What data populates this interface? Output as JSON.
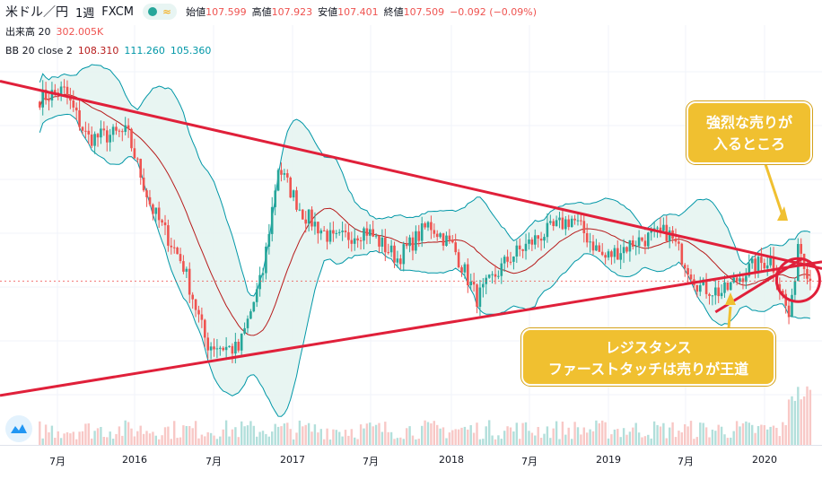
{
  "header": {
    "symbol": "米ドル／円",
    "timeframe": "1週",
    "source": "FXCM",
    "wave_glyph": "≈",
    "ohlc": [
      {
        "label": "始値",
        "value": "107.599"
      },
      {
        "label": "高値",
        "value": "107.923"
      },
      {
        "label": "安値",
        "value": "107.401"
      },
      {
        "label": "終値",
        "value": "107.509"
      }
    ],
    "change": "−0.092 (−0.09%)"
  },
  "volume_indicator": {
    "label": "出来高 20",
    "value": "302.005K"
  },
  "bb_indicator": {
    "label": "BB 20 close 2",
    "basis": "108.310",
    "upper": "111.260",
    "lower": "105.360"
  },
  "callouts": {
    "top_line1": "強烈な売りが",
    "top_line2": "入るところ",
    "bottom_line1": "レジスタンス",
    "bottom_line2": "ファーストタッチは売りが王道"
  },
  "colors": {
    "up": "#26a69a",
    "down": "#ef5350",
    "trendline": "#e0203a",
    "band": "#0097a7",
    "band_fill": "#e6f4f1",
    "basis": "#b71c1c",
    "callout": "#f0c030"
  },
  "chart_data": {
    "type": "candlestick",
    "instrument": "USD/JPY",
    "interval": "1W",
    "x_ticks": [
      "7月",
      "2016",
      "7月",
      "2017",
      "7月",
      "2018",
      "7月",
      "2019",
      "7月",
      "2020"
    ],
    "approx_price_path": [
      {
        "t": 2015.45,
        "price": 123.5
      },
      {
        "t": 2015.6,
        "price": 124.2
      },
      {
        "t": 2015.75,
        "price": 120.0
      },
      {
        "t": 2016.0,
        "price": 120.5
      },
      {
        "t": 2016.15,
        "price": 114.0
      },
      {
        "t": 2016.35,
        "price": 109.0
      },
      {
        "t": 2016.5,
        "price": 102.0
      },
      {
        "t": 2016.7,
        "price": 101.5
      },
      {
        "t": 2016.85,
        "price": 108.0
      },
      {
        "t": 2016.95,
        "price": 117.5
      },
      {
        "t": 2017.1,
        "price": 113.5
      },
      {
        "t": 2017.3,
        "price": 111.0
      },
      {
        "t": 2017.5,
        "price": 112.0
      },
      {
        "t": 2017.7,
        "price": 109.5
      },
      {
        "t": 2017.9,
        "price": 112.5
      },
      {
        "t": 2018.05,
        "price": 110.5
      },
      {
        "t": 2018.2,
        "price": 106.0
      },
      {
        "t": 2018.4,
        "price": 109.5
      },
      {
        "t": 2018.6,
        "price": 111.5
      },
      {
        "t": 2018.8,
        "price": 113.0
      },
      {
        "t": 2019.0,
        "price": 109.5
      },
      {
        "t": 2019.2,
        "price": 111.0
      },
      {
        "t": 2019.4,
        "price": 111.8
      },
      {
        "t": 2019.6,
        "price": 107.0
      },
      {
        "t": 2019.75,
        "price": 106.5
      },
      {
        "t": 2019.9,
        "price": 108.5
      },
      {
        "t": 2020.05,
        "price": 109.5
      },
      {
        "t": 2020.17,
        "price": 104.0
      },
      {
        "t": 2020.22,
        "price": 111.0
      },
      {
        "t": 2020.3,
        "price": 107.5
      }
    ],
    "last_close": 107.509,
    "indicators": [
      "Volume 20",
      "Bollinger Bands 20 close 2"
    ],
    "annotations": [
      "descending resistance trendline",
      "ascending support trendline",
      "circle at touch point"
    ]
  }
}
